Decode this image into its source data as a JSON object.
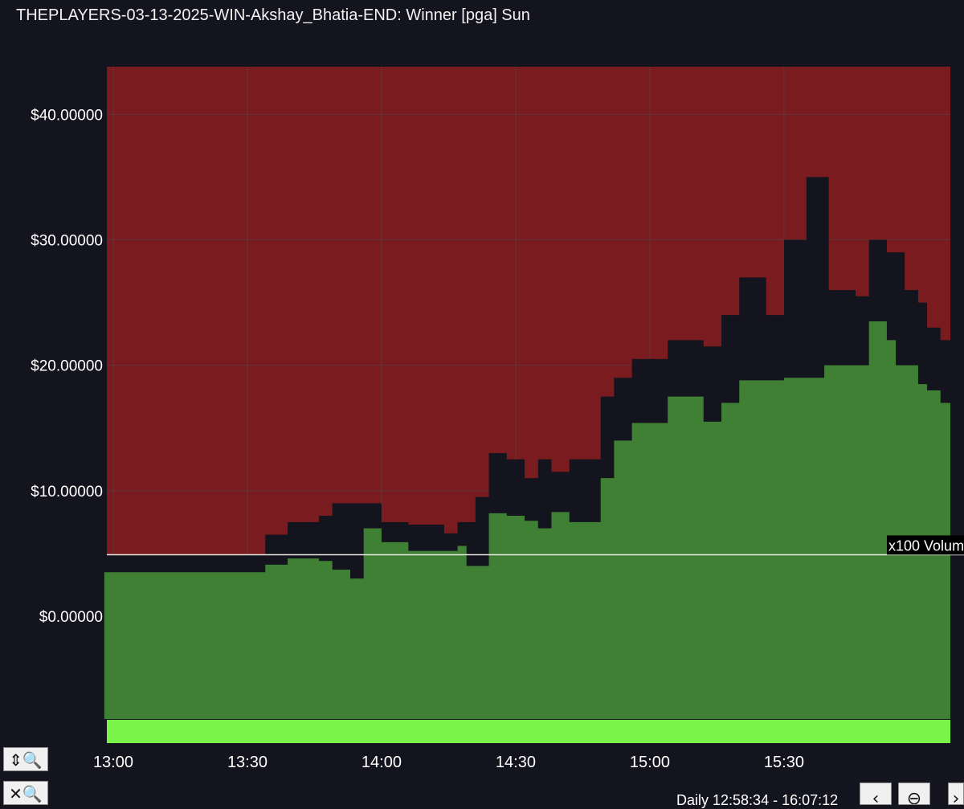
{
  "window": {
    "title": "THEPLAYERS-03-13-2025-WIN-Akshay_Bhatia-END: Winner [pga] Sun"
  },
  "controls": {
    "zoom_vertical_icon": "zoom-vertical-icon",
    "zoom_reset_icon": "zoom-reset-icon",
    "range_label": "Daily 12:58:34 - 16:07:12",
    "prev_icon": "chevron-left-icon",
    "zoom_out_icon": "zoom-out-icon",
    "next_icon": "chevron-right-icon"
  },
  "colors": {
    "background": "#14141f",
    "ask_fill": "#7a1c1f",
    "bid_fill": "#3f8034",
    "volume_bar": "#78f548",
    "grid": "#4a4a55",
    "reference_line": "#e8e8e0"
  },
  "chart_data": {
    "type": "area",
    "xlabel": "",
    "ylabel": "",
    "x_ticks": [
      "13:00",
      "13:30",
      "14:00",
      "14:30",
      "15:00",
      "15:30"
    ],
    "y_ticks": [
      "$40.00000",
      "$30.00000",
      "$20.00000",
      "$10.00000",
      "$0.00000"
    ],
    "xlim": [
      "12:58:34",
      "16:07:12"
    ],
    "ylim": [
      -8.2,
      43.8
    ],
    "reference_line": {
      "value": 4.9,
      "label": "x100 Volum"
    },
    "grid": true,
    "series": [
      {
        "name": "",
        "points": [
          [
            "12:58",
            3.5
          ],
          [
            "13:30",
            3.5
          ],
          [
            "13:34",
            4.1
          ],
          [
            "13:39",
            4.6
          ],
          [
            "13:46",
            4.4
          ],
          [
            "13:49",
            3.7
          ],
          [
            "13:53",
            3.0
          ],
          [
            "13:56",
            7.0
          ],
          [
            "14:00",
            5.9
          ],
          [
            "14:06",
            5.2
          ],
          [
            "14:14",
            5.2
          ],
          [
            "14:17",
            5.6
          ],
          [
            "14:19",
            4.0
          ],
          [
            "14:24",
            8.2
          ],
          [
            "14:28",
            8.0
          ],
          [
            "14:32",
            7.6
          ],
          [
            "14:35",
            7.0
          ],
          [
            "14:38",
            8.3
          ],
          [
            "14:42",
            7.5
          ],
          [
            "14:49",
            11.0
          ],
          [
            "14:52",
            14.0
          ],
          [
            "14:56",
            15.4
          ],
          [
            "15:04",
            17.5
          ],
          [
            "15:12",
            15.5
          ],
          [
            "15:16",
            17.0
          ],
          [
            "15:20",
            18.8
          ],
          [
            "15:30",
            19.0
          ],
          [
            "15:39",
            20.0
          ],
          [
            "15:46",
            20.0
          ],
          [
            "15:49",
            23.5
          ],
          [
            "15:53",
            22.0
          ],
          [
            "15:55",
            20.0
          ],
          [
            "16:00",
            18.5
          ],
          [
            "16:02",
            18.0
          ],
          [
            "16:05",
            17.0
          ]
        ]
      },
      {
        "name": "",
        "points": [
          [
            "12:58",
            4.9
          ],
          [
            "13:30",
            4.9
          ],
          [
            "13:34",
            6.5
          ],
          [
            "13:39",
            7.5
          ],
          [
            "13:46",
            8.0
          ],
          [
            "13:49",
            9.0
          ],
          [
            "13:56",
            9.0
          ],
          [
            "14:00",
            7.5
          ],
          [
            "14:06",
            7.3
          ],
          [
            "14:14",
            6.6
          ],
          [
            "14:17",
            7.5
          ],
          [
            "14:21",
            9.5
          ],
          [
            "14:24",
            13.0
          ],
          [
            "14:28",
            12.5
          ],
          [
            "14:32",
            11.0
          ],
          [
            "14:35",
            12.5
          ],
          [
            "14:38",
            11.5
          ],
          [
            "14:42",
            12.5
          ],
          [
            "14:49",
            17.5
          ],
          [
            "14:52",
            19.0
          ],
          [
            "14:56",
            20.5
          ],
          [
            "15:04",
            22.0
          ],
          [
            "15:12",
            21.5
          ],
          [
            "15:16",
            24.0
          ],
          [
            "15:20",
            27.0
          ],
          [
            "15:26",
            24.0
          ],
          [
            "15:30",
            30.0
          ],
          [
            "15:35",
            35.0
          ],
          [
            "15:40",
            26.0
          ],
          [
            "15:46",
            25.5
          ],
          [
            "15:49",
            30.0
          ],
          [
            "15:53",
            29.0
          ],
          [
            "15:57",
            26.0
          ],
          [
            "16:00",
            25.0
          ],
          [
            "16:02",
            23.0
          ],
          [
            "16:05",
            22.0
          ]
        ]
      }
    ]
  }
}
